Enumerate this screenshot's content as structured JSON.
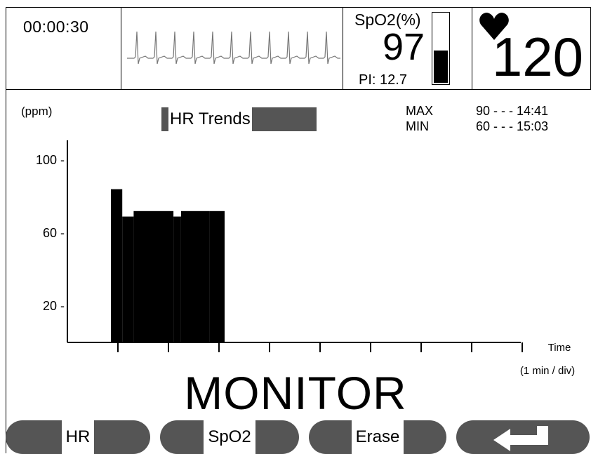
{
  "header": {
    "timer": "00:00:30",
    "spo2": {
      "label": "SpO2(%)",
      "value": "97",
      "pi": "PI: 12.7",
      "level": 0.45
    },
    "hr": {
      "value": "120"
    }
  },
  "trend": {
    "unit_label": "(ppm)",
    "title": "HR Trends",
    "max": {
      "label": "MAX",
      "value": "90 - - - 14:41"
    },
    "min": {
      "label": "MIN",
      "value": "60 - - - 15:03"
    }
  },
  "chart_data": {
    "type": "bar",
    "title": "HR Trends",
    "ylabel": "(ppm)",
    "xlabel": "Time",
    "xunit_label": "(1 min / div)",
    "ylim": [
      0,
      100
    ],
    "yticks": [
      100,
      60,
      20
    ],
    "ytick_labels": [
      "100 -",
      "60 -",
      "20 -"
    ],
    "xdivs": 9,
    "values": [
      84,
      69,
      72,
      72,
      72,
      69,
      72,
      72,
      72
    ],
    "x": [
      0,
      0.6,
      1.2,
      2.0,
      3.0,
      3.3,
      3.7,
      4.5,
      5.2
    ]
  },
  "mode": "MONITOR",
  "buttons": {
    "hr": "HR",
    "spo2": "SpO2",
    "erase": "Erase",
    "back_icon": "return-arrow-icon"
  }
}
